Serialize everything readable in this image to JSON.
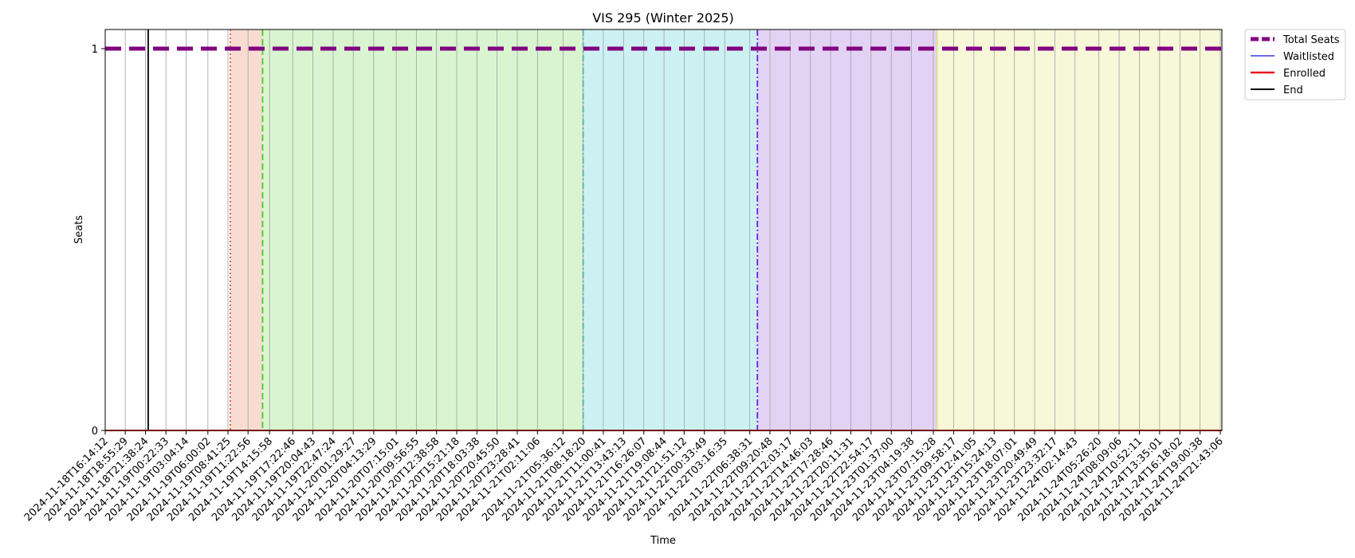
{
  "chart_data": {
    "type": "line",
    "title": "VIS 295 (Winter 2025)",
    "xlabel": "Time",
    "ylabel": "Seats",
    "ylim": [
      0,
      1.05
    ],
    "yticks": [
      0,
      1
    ],
    "grid": "vertical",
    "legend_position": "outside-top-right",
    "x": [
      "2024-11-18T16:14:12",
      "2024-11-18T18:55:29",
      "2024-11-18T21:38:24",
      "2024-11-19T00:22:33",
      "2024-11-19T03:04:14",
      "2024-11-19T06:00:02",
      "2024-11-19T08:41:25",
      "2024-11-19T11:22:56",
      "2024-11-19T14:15:58",
      "2024-11-19T17:22:46",
      "2024-11-19T20:04:43",
      "2024-11-19T22:47:24",
      "2024-11-20T01:29:27",
      "2024-11-20T04:13:29",
      "2024-11-20T07:15:01",
      "2024-11-20T09:56:55",
      "2024-11-20T12:38:58",
      "2024-11-20T15:21:18",
      "2024-11-20T18:03:38",
      "2024-11-20T20:45:50",
      "2024-11-20T23:28:41",
      "2024-11-21T02:11:06",
      "2024-11-21T05:36:12",
      "2024-11-21T08:18:20",
      "2024-11-21T11:00:41",
      "2024-11-21T13:43:13",
      "2024-11-21T16:26:07",
      "2024-11-21T19:08:44",
      "2024-11-21T21:51:12",
      "2024-11-22T00:33:49",
      "2024-11-22T03:16:35",
      "2024-11-22T06:38:31",
      "2024-11-22T09:20:48",
      "2024-11-22T12:03:17",
      "2024-11-22T14:46:03",
      "2024-11-22T17:28:46",
      "2024-11-22T20:11:31",
      "2024-11-22T22:54:17",
      "2024-11-23T01:37:00",
      "2024-11-23T04:19:38",
      "2024-11-23T07:15:28",
      "2024-11-23T09:58:17",
      "2024-11-23T12:41:05",
      "2024-11-23T15:24:13",
      "2024-11-23T18:07:01",
      "2024-11-23T20:49:49",
      "2024-11-23T23:32:17",
      "2024-11-24T02:14:43",
      "2024-11-24T05:26:20",
      "2024-11-24T08:09:06",
      "2024-11-24T10:52:11",
      "2024-11-24T13:35:01",
      "2024-11-24T16:18:02",
      "2024-11-24T19:00:38",
      "2024-11-24T21:43:06"
    ],
    "series": [
      {
        "name": "Total Seats",
        "color": "#800080",
        "style": "dashed",
        "value": 1
      },
      {
        "name": "Waitlisted",
        "color": "#3a3ae8",
        "style": "solid",
        "value": 0
      },
      {
        "name": "Enrolled",
        "color": "#e8141c",
        "style": "solid",
        "value": 0
      },
      {
        "name": "End",
        "color": "#000000",
        "style": "solid"
      }
    ],
    "end_marker_x": "2024-11-18T22:00:00",
    "shaded_regions": [
      {
        "from": "2024-11-19T09:00:00",
        "to": "2024-11-19T13:20:00",
        "color": "#f8dcd2",
        "edge_color": "#e5572f",
        "edge_style": "dotted"
      },
      {
        "from": "2024-11-19T13:20:00",
        "to": "2024-11-21T08:18:20",
        "color": "#d9f5d0",
        "edge_color": "#4cc829",
        "edge_style": "dashed"
      },
      {
        "from": "2024-11-21T08:18:20",
        "to": "2024-11-22T07:40:00",
        "color": "#cdf1f3",
        "edge_color": "#1abcbc",
        "edge_style": "dashdot"
      },
      {
        "from": "2024-11-22T07:40:00",
        "to": "2024-11-23T07:45:00",
        "color": "#e2d3f5",
        "edge_color": "#6a22e0",
        "edge_style": "dashdot"
      },
      {
        "from": "2024-11-23T07:45:00",
        "to": "2024-11-24T23:00:00",
        "color": "#f7f8d8",
        "edge_color": "#e2e08a",
        "edge_style": "solid"
      }
    ]
  }
}
